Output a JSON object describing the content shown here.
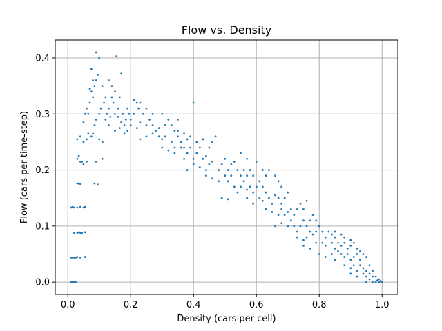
{
  "chart_data": {
    "type": "scatter",
    "title": "Flow vs. Density",
    "xlabel": "Density (cars per cell)",
    "ylabel": "Flow (cars per time-step)",
    "xlim": [
      -0.04,
      1.05
    ],
    "ylim": [
      -0.022,
      0.432
    ],
    "xticks": [
      0.0,
      0.2,
      0.4,
      0.6,
      0.8,
      1.0
    ],
    "yticks": [
      0.0,
      0.1,
      0.2,
      0.3,
      0.4
    ],
    "xtick_labels": [
      "0.0",
      "0.2",
      "0.4",
      "0.6",
      "0.8",
      "1.0"
    ],
    "ytick_labels": [
      "0.0",
      "0.1",
      "0.2",
      "0.3",
      "0.4"
    ],
    "grid": true,
    "point_color": "#1f77b4",
    "points": [
      [
        0.01,
        0.0
      ],
      [
        0.015,
        0.0
      ],
      [
        0.02,
        0.0
      ],
      [
        0.025,
        0.0
      ],
      [
        0.01,
        0.044
      ],
      [
        0.015,
        0.044
      ],
      [
        0.02,
        0.044
      ],
      [
        0.025,
        0.044
      ],
      [
        0.03,
        0.045
      ],
      [
        0.04,
        0.044
      ],
      [
        0.055,
        0.045
      ],
      [
        0.02,
        0.088
      ],
      [
        0.03,
        0.088
      ],
      [
        0.035,
        0.089
      ],
      [
        0.04,
        0.088
      ],
      [
        0.045,
        0.088
      ],
      [
        0.055,
        0.089
      ],
      [
        0.01,
        0.133
      ],
      [
        0.015,
        0.134
      ],
      [
        0.02,
        0.133
      ],
      [
        0.03,
        0.133
      ],
      [
        0.04,
        0.134
      ],
      [
        0.05,
        0.133
      ],
      [
        0.055,
        0.134
      ],
      [
        0.03,
        0.176
      ],
      [
        0.035,
        0.176
      ],
      [
        0.04,
        0.175
      ],
      [
        0.085,
        0.176
      ],
      [
        0.095,
        0.174
      ],
      [
        0.03,
        0.22
      ],
      [
        0.035,
        0.225
      ],
      [
        0.04,
        0.215
      ],
      [
        0.045,
        0.215
      ],
      [
        0.05,
        0.21
      ],
      [
        0.06,
        0.215
      ],
      [
        0.09,
        0.215
      ],
      [
        0.11,
        0.22
      ],
      [
        0.03,
        0.255
      ],
      [
        0.04,
        0.26
      ],
      [
        0.05,
        0.25
      ],
      [
        0.06,
        0.255
      ],
      [
        0.065,
        0.265
      ],
      [
        0.075,
        0.26
      ],
      [
        0.08,
        0.265
      ],
      [
        0.1,
        0.255
      ],
      [
        0.11,
        0.25
      ],
      [
        0.05,
        0.285
      ],
      [
        0.055,
        0.3
      ],
      [
        0.06,
        0.31
      ],
      [
        0.065,
        0.3
      ],
      [
        0.07,
        0.32
      ],
      [
        0.075,
        0.34
      ],
      [
        0.08,
        0.33
      ],
      [
        0.085,
        0.35
      ],
      [
        0.09,
        0.36
      ],
      [
        0.095,
        0.37
      ],
      [
        0.07,
        0.345
      ],
      [
        0.075,
        0.38
      ],
      [
        0.08,
        0.36
      ],
      [
        0.09,
        0.41
      ],
      [
        0.1,
        0.4
      ],
      [
        0.11,
        0.35
      ],
      [
        0.12,
        0.33
      ],
      [
        0.13,
        0.36
      ],
      [
        0.14,
        0.35
      ],
      [
        0.15,
        0.34
      ],
      [
        0.155,
        0.403
      ],
      [
        0.17,
        0.372
      ],
      [
        0.085,
        0.28
      ],
      [
        0.09,
        0.29
      ],
      [
        0.1,
        0.3
      ],
      [
        0.105,
        0.31
      ],
      [
        0.115,
        0.32
      ],
      [
        0.125,
        0.3
      ],
      [
        0.13,
        0.31
      ],
      [
        0.135,
        0.295
      ],
      [
        0.14,
        0.33
      ],
      [
        0.145,
        0.32
      ],
      [
        0.16,
        0.31
      ],
      [
        0.165,
        0.33
      ],
      [
        0.175,
        0.3
      ],
      [
        0.185,
        0.29
      ],
      [
        0.12,
        0.29
      ],
      [
        0.13,
        0.28
      ],
      [
        0.15,
        0.3
      ],
      [
        0.16,
        0.295
      ],
      [
        0.17,
        0.285
      ],
      [
        0.18,
        0.28
      ],
      [
        0.19,
        0.31
      ],
      [
        0.195,
        0.3
      ],
      [
        0.2,
        0.29
      ],
      [
        0.21,
        0.3
      ],
      [
        0.22,
        0.32
      ],
      [
        0.225,
        0.31
      ],
      [
        0.24,
        0.3
      ],
      [
        0.15,
        0.27
      ],
      [
        0.165,
        0.275
      ],
      [
        0.18,
        0.265
      ],
      [
        0.19,
        0.27
      ],
      [
        0.2,
        0.28
      ],
      [
        0.22,
        0.275
      ],
      [
        0.23,
        0.285
      ],
      [
        0.25,
        0.28
      ],
      [
        0.26,
        0.29
      ],
      [
        0.27,
        0.28
      ],
      [
        0.28,
        0.27
      ],
      [
        0.29,
        0.275
      ],
      [
        0.21,
        0.325
      ],
      [
        0.23,
        0.32
      ],
      [
        0.25,
        0.31
      ],
      [
        0.27,
        0.3
      ],
      [
        0.3,
        0.3
      ],
      [
        0.32,
        0.29
      ],
      [
        0.31,
        0.28
      ],
      [
        0.33,
        0.28
      ],
      [
        0.34,
        0.27
      ],
      [
        0.35,
        0.29
      ],
      [
        0.23,
        0.255
      ],
      [
        0.25,
        0.26
      ],
      [
        0.27,
        0.265
      ],
      [
        0.29,
        0.26
      ],
      [
        0.3,
        0.255
      ],
      [
        0.31,
        0.26
      ],
      [
        0.33,
        0.25
      ],
      [
        0.34,
        0.24
      ],
      [
        0.35,
        0.26
      ],
      [
        0.36,
        0.25
      ],
      [
        0.37,
        0.24
      ],
      [
        0.38,
        0.255
      ],
      [
        0.3,
        0.24
      ],
      [
        0.32,
        0.235
      ],
      [
        0.34,
        0.23
      ],
      [
        0.36,
        0.24
      ],
      [
        0.37,
        0.22
      ],
      [
        0.38,
        0.23
      ],
      [
        0.39,
        0.24
      ],
      [
        0.4,
        0.22
      ],
      [
        0.41,
        0.23
      ],
      [
        0.42,
        0.24
      ],
      [
        0.43,
        0.22
      ],
      [
        0.44,
        0.225
      ],
      [
        0.35,
        0.27
      ],
      [
        0.37,
        0.265
      ],
      [
        0.39,
        0.26
      ],
      [
        0.4,
        0.32
      ],
      [
        0.41,
        0.25
      ],
      [
        0.43,
        0.255
      ],
      [
        0.45,
        0.24
      ],
      [
        0.46,
        0.25
      ],
      [
        0.47,
        0.26
      ],
      [
        0.38,
        0.2
      ],
      [
        0.4,
        0.21
      ],
      [
        0.42,
        0.205
      ],
      [
        0.44,
        0.2
      ],
      [
        0.45,
        0.21
      ],
      [
        0.46,
        0.215
      ],
      [
        0.48,
        0.2
      ],
      [
        0.49,
        0.21
      ],
      [
        0.5,
        0.22
      ],
      [
        0.51,
        0.2
      ],
      [
        0.52,
        0.21
      ],
      [
        0.53,
        0.215
      ],
      [
        0.44,
        0.19
      ],
      [
        0.46,
        0.185
      ],
      [
        0.48,
        0.18
      ],
      [
        0.5,
        0.19
      ],
      [
        0.51,
        0.18
      ],
      [
        0.52,
        0.19
      ],
      [
        0.54,
        0.2
      ],
      [
        0.55,
        0.19
      ],
      [
        0.56,
        0.2
      ],
      [
        0.57,
        0.19
      ],
      [
        0.58,
        0.2
      ],
      [
        0.59,
        0.19
      ],
      [
        0.49,
        0.15
      ],
      [
        0.51,
        0.148
      ],
      [
        0.53,
        0.17
      ],
      [
        0.54,
        0.16
      ],
      [
        0.55,
        0.17
      ],
      [
        0.56,
        0.18
      ],
      [
        0.57,
        0.165
      ],
      [
        0.58,
        0.17
      ],
      [
        0.59,
        0.16
      ],
      [
        0.6,
        0.17
      ],
      [
        0.61,
        0.18
      ],
      [
        0.62,
        0.17
      ],
      [
        0.55,
        0.23
      ],
      [
        0.57,
        0.22
      ],
      [
        0.6,
        0.215
      ],
      [
        0.62,
        0.2
      ],
      [
        0.63,
        0.19
      ],
      [
        0.64,
        0.2
      ],
      [
        0.66,
        0.19
      ],
      [
        0.67,
        0.18
      ],
      [
        0.68,
        0.17
      ],
      [
        0.57,
        0.15
      ],
      [
        0.59,
        0.14
      ],
      [
        0.61,
        0.15
      ],
      [
        0.62,
        0.145
      ],
      [
        0.63,
        0.16
      ],
      [
        0.64,
        0.15
      ],
      [
        0.65,
        0.14
      ],
      [
        0.66,
        0.155
      ],
      [
        0.67,
        0.15
      ],
      [
        0.68,
        0.14
      ],
      [
        0.69,
        0.15
      ],
      [
        0.7,
        0.16
      ],
      [
        0.63,
        0.13
      ],
      [
        0.65,
        0.125
      ],
      [
        0.67,
        0.12
      ],
      [
        0.68,
        0.13
      ],
      [
        0.69,
        0.12
      ],
      [
        0.7,
        0.125
      ],
      [
        0.71,
        0.13
      ],
      [
        0.72,
        0.12
      ],
      [
        0.73,
        0.13
      ],
      [
        0.74,
        0.14
      ],
      [
        0.75,
        0.13
      ],
      [
        0.76,
        0.145
      ],
      [
        0.66,
        0.1
      ],
      [
        0.68,
        0.105
      ],
      [
        0.7,
        0.1
      ],
      [
        0.71,
        0.11
      ],
      [
        0.72,
        0.1
      ],
      [
        0.73,
        0.09
      ],
      [
        0.74,
        0.1
      ],
      [
        0.75,
        0.11
      ],
      [
        0.76,
        0.1
      ],
      [
        0.77,
        0.11
      ],
      [
        0.78,
        0.12
      ],
      [
        0.79,
        0.11
      ],
      [
        0.73,
        0.08
      ],
      [
        0.75,
        0.075
      ],
      [
        0.76,
        0.08
      ],
      [
        0.77,
        0.09
      ],
      [
        0.78,
        0.085
      ],
      [
        0.79,
        0.09
      ],
      [
        0.8,
        0.1
      ],
      [
        0.81,
        0.09
      ],
      [
        0.82,
        0.08
      ],
      [
        0.83,
        0.09
      ],
      [
        0.84,
        0.085
      ],
      [
        0.85,
        0.09
      ],
      [
        0.75,
        0.065
      ],
      [
        0.77,
        0.06
      ],
      [
        0.79,
        0.07
      ],
      [
        0.81,
        0.07
      ],
      [
        0.82,
        0.065
      ],
      [
        0.84,
        0.07
      ],
      [
        0.85,
        0.06
      ],
      [
        0.86,
        0.07
      ],
      [
        0.87,
        0.065
      ],
      [
        0.88,
        0.07
      ],
      [
        0.89,
        0.06
      ],
      [
        0.9,
        0.065
      ],
      [
        0.8,
        0.05
      ],
      [
        0.82,
        0.045
      ],
      [
        0.84,
        0.05
      ],
      [
        0.85,
        0.04
      ],
      [
        0.86,
        0.055
      ],
      [
        0.87,
        0.05
      ],
      [
        0.88,
        0.045
      ],
      [
        0.89,
        0.05
      ],
      [
        0.9,
        0.04
      ],
      [
        0.91,
        0.045
      ],
      [
        0.92,
        0.05
      ],
      [
        0.93,
        0.04
      ],
      [
        0.85,
        0.08
      ],
      [
        0.87,
        0.085
      ],
      [
        0.88,
        0.08
      ],
      [
        0.9,
        0.075
      ],
      [
        0.91,
        0.07
      ],
      [
        0.92,
        0.06
      ],
      [
        0.93,
        0.055
      ],
      [
        0.94,
        0.05
      ],
      [
        0.95,
        0.045
      ],
      [
        0.88,
        0.03
      ],
      [
        0.9,
        0.025
      ],
      [
        0.91,
        0.03
      ],
      [
        0.92,
        0.02
      ],
      [
        0.93,
        0.03
      ],
      [
        0.94,
        0.025
      ],
      [
        0.95,
        0.02
      ],
      [
        0.96,
        0.03
      ],
      [
        0.97,
        0.02
      ],
      [
        0.9,
        0.015
      ],
      [
        0.92,
        0.01
      ],
      [
        0.94,
        0.015
      ],
      [
        0.95,
        0.01
      ],
      [
        0.96,
        0.015
      ],
      [
        0.97,
        0.01
      ],
      [
        0.98,
        0.01
      ],
      [
        0.99,
        0.005
      ],
      [
        0.95,
        0.0
      ],
      [
        0.96,
        0.005
      ],
      [
        0.97,
        0.0
      ],
      [
        0.98,
        0.0
      ],
      [
        0.99,
        0.0
      ],
      [
        1.0,
        0.0
      ],
      [
        0.995,
        0.002
      ],
      [
        0.985,
        0.003
      ]
    ]
  }
}
